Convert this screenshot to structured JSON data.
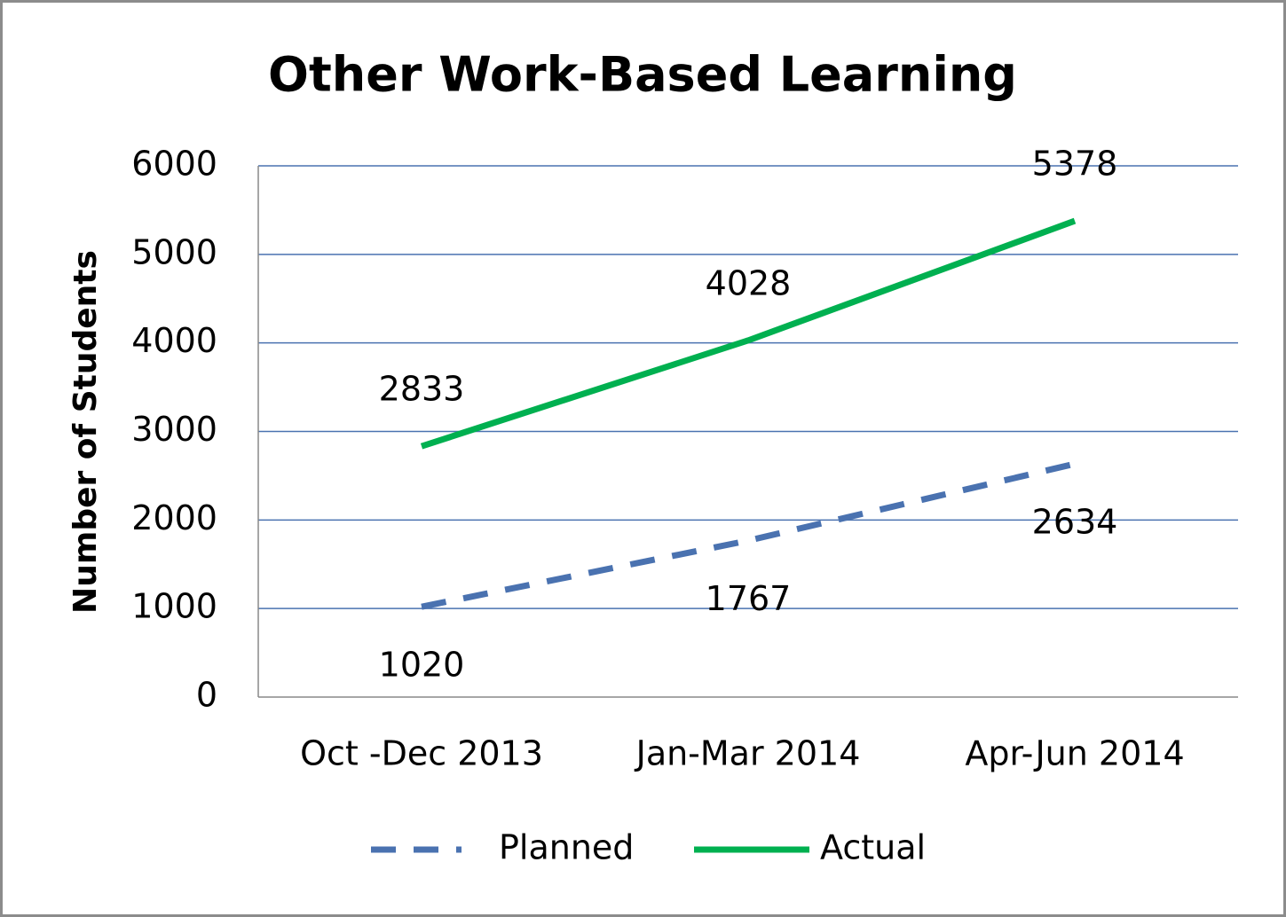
{
  "chart_data": {
    "type": "line",
    "title": "Other Work-Based Learning",
    "y_label": "Number of Students",
    "categories": [
      "Oct -Dec 2013",
      "Jan-Mar 2014",
      "Apr-Jun 2014"
    ],
    "series": [
      {
        "name": "Planned",
        "color": "#4a72b0",
        "dashed": true,
        "values": [
          1020,
          1767,
          2634
        ]
      },
      {
        "name": "Actual",
        "color": "#00b050",
        "dashed": false,
        "values": [
          2833,
          4028,
          5378
        ]
      }
    ],
    "ylim": [
      0,
      6000
    ],
    "yticks": [
      0,
      1000,
      2000,
      3000,
      4000,
      5000,
      6000
    ],
    "grid": true,
    "legend": "bottom"
  }
}
